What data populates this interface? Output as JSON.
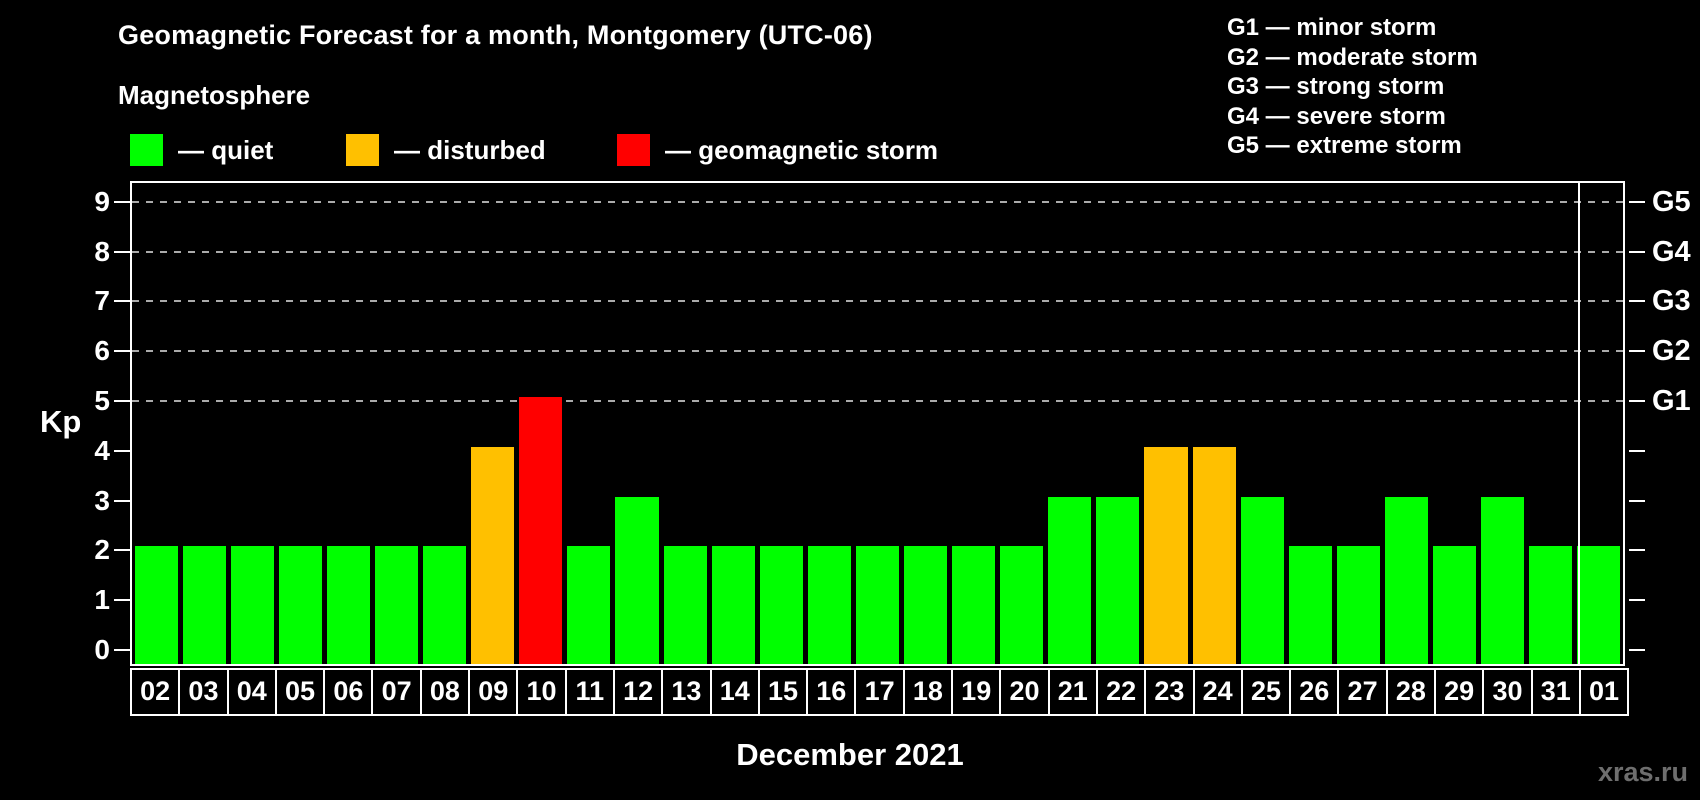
{
  "header": {
    "title": "Geomagnetic Forecast for a month, Montgomery (UTC-06)"
  },
  "legend": {
    "title": "Magnetosphere",
    "items": [
      {
        "key": "quiet",
        "label": "— quiet",
        "color": "#00ff00"
      },
      {
        "key": "disturbed",
        "label": "— disturbed",
        "color": "#ffc000"
      },
      {
        "key": "storm",
        "label": "— geomagnetic storm",
        "color": "#ff0000"
      }
    ]
  },
  "g_legend": [
    "G1 — minor storm",
    "G2 — moderate storm",
    "G3 — strong storm",
    "G4 — severe storm",
    "G5 — extreme storm"
  ],
  "axes": {
    "y_label": "Kp",
    "y_ticks": [
      0,
      1,
      2,
      3,
      4,
      5,
      6,
      7,
      8,
      9
    ],
    "gridline_kp": [
      5,
      6,
      7,
      8,
      9
    ],
    "right_labels": [
      {
        "kp": 5,
        "label": "G1"
      },
      {
        "kp": 6,
        "label": "G2"
      },
      {
        "kp": 7,
        "label": "G3"
      },
      {
        "kp": 8,
        "label": "G4"
      },
      {
        "kp": 9,
        "label": "G5"
      }
    ],
    "x_label": "December 2021"
  },
  "watermark": "xras.ru",
  "chart_data": {
    "type": "bar",
    "title": "Geomagnetic Forecast for a month, Montgomery (UTC-06)",
    "xlabel": "December 2021",
    "ylabel": "Kp",
    "ylim": [
      0,
      9
    ],
    "grid": "dashed horizontal lines at Kp 5-9 (G1-G5)",
    "legend_position": "top-left",
    "categories": [
      "02",
      "03",
      "04",
      "05",
      "06",
      "07",
      "08",
      "09",
      "10",
      "11",
      "12",
      "13",
      "14",
      "15",
      "16",
      "17",
      "18",
      "19",
      "20",
      "21",
      "22",
      "23",
      "24",
      "25",
      "26",
      "27",
      "28",
      "29",
      "30",
      "31",
      "01"
    ],
    "values": [
      2,
      2,
      2,
      2,
      2,
      2,
      2,
      4,
      5,
      2,
      3,
      2,
      2,
      2,
      2,
      2,
      2,
      2,
      2,
      3,
      3,
      4,
      4,
      3,
      2,
      2,
      3,
      2,
      3,
      2,
      2
    ],
    "statuses": [
      "quiet",
      "quiet",
      "quiet",
      "quiet",
      "quiet",
      "quiet",
      "quiet",
      "disturbed",
      "storm",
      "quiet",
      "quiet",
      "quiet",
      "quiet",
      "quiet",
      "quiet",
      "quiet",
      "quiet",
      "quiet",
      "quiet",
      "quiet",
      "quiet",
      "disturbed",
      "disturbed",
      "quiet",
      "quiet",
      "quiet",
      "quiet",
      "quiet",
      "quiet",
      "quiet",
      "quiet"
    ],
    "colors": {
      "quiet": "#00ff00",
      "disturbed": "#ffc000",
      "storm": "#ff0000"
    },
    "month_separator_after_category": "31"
  }
}
